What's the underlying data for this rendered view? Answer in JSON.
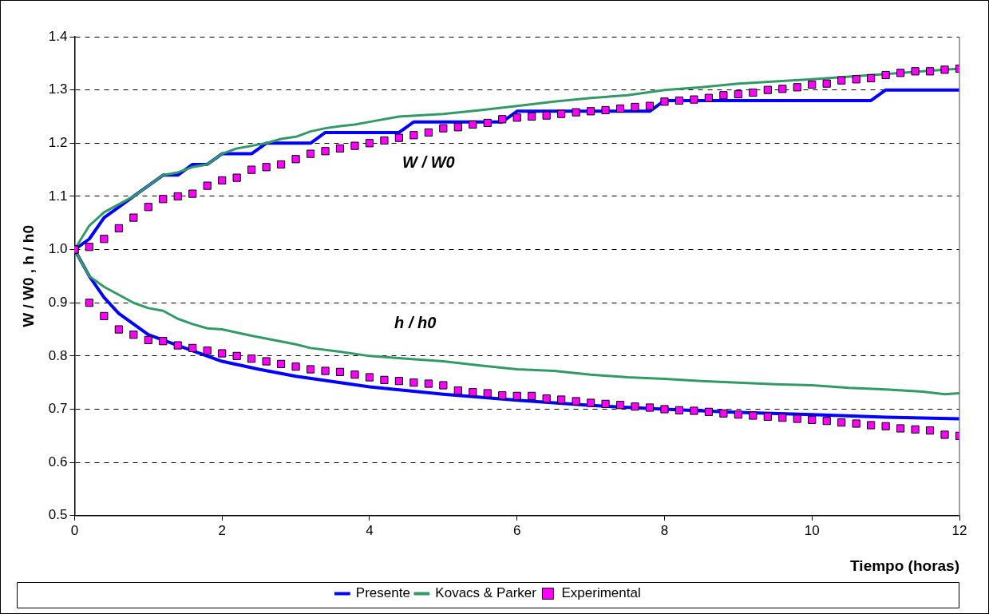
{
  "chart_data": {
    "type": "line",
    "xlabel": "Tiempo (horas)",
    "ylabel": "W / W0 , h / h0",
    "xlim": [
      0,
      12
    ],
    "xticks": [
      0,
      2,
      4,
      6,
      8,
      10,
      12
    ],
    "ylim": [
      0.5,
      1.4
    ],
    "yticks": [
      0.5,
      0.6,
      0.7,
      0.8,
      0.9,
      {
        "value": 1,
        "label": "1.0"
      },
      1.1,
      1.2,
      1.3,
      1.4
    ],
    "grid": "y",
    "legend": "bottom",
    "annotations": [
      "W / W0",
      "h / h0"
    ],
    "series": [
      {
        "name": "Presente",
        "type": "line",
        "color": "#0000ff",
        "marker": "none",
        "line_style": "solid",
        "x": [
          0,
          0.2,
          0.4,
          0.6,
          0.8,
          1.0,
          1.2,
          1.4,
          1.6,
          1.8,
          2.0,
          2.4,
          2.6,
          3.2,
          3.4,
          4.4,
          4.6,
          5.8,
          6.0,
          7.8,
          8.0,
          10.8,
          11.0,
          12.0
        ],
        "values": [
          1.0,
          1.02,
          1.06,
          1.08,
          1.1,
          1.12,
          1.14,
          1.14,
          1.16,
          1.16,
          1.18,
          1.18,
          1.2,
          1.2,
          1.22,
          1.22,
          1.24,
          1.24,
          1.26,
          1.26,
          1.28,
          1.28,
          1.3,
          1.3
        ]
      },
      {
        "type": "line",
        "color": "#0000ff",
        "marker": "none",
        "line_style": "solid",
        "x": [
          0,
          0.2,
          0.4,
          0.6,
          0.8,
          1.0,
          1.4,
          2.0,
          2.5,
          3,
          4,
          5,
          6,
          7,
          8,
          9,
          10,
          11,
          12
        ],
        "values": [
          1.0,
          0.95,
          0.91,
          0.88,
          0.86,
          0.84,
          0.82,
          0.79,
          0.775,
          0.762,
          0.742,
          0.728,
          0.717,
          0.707,
          0.7,
          0.694,
          0.69,
          0.685,
          0.682
        ]
      },
      {
        "name": "Kovacs & Parker",
        "type": "line",
        "color": "#339966",
        "marker": "none",
        "line_style": "solid",
        "x": [
          0,
          0.2,
          0.4,
          0.6,
          0.8,
          1.0,
          1.2,
          1.4,
          1.6,
          1.8,
          2.0,
          2.2,
          2.4,
          2.6,
          2.8,
          3.0,
          3.2,
          3.4,
          3.6,
          3.8,
          4.0,
          4.4,
          5,
          5.5,
          6,
          6.5,
          7,
          7.5,
          8,
          8.5,
          9,
          9.5,
          10,
          10.5,
          11,
          11.5,
          12
        ],
        "values": [
          1.0,
          1.045,
          1.07,
          1.085,
          1.1,
          1.12,
          1.14,
          1.145,
          1.155,
          1.16,
          1.18,
          1.19,
          1.195,
          1.2,
          1.208,
          1.212,
          1.222,
          1.228,
          1.232,
          1.235,
          1.24,
          1.25,
          1.255,
          1.262,
          1.27,
          1.278,
          1.285,
          1.29,
          1.3,
          1.305,
          1.312,
          1.316,
          1.32,
          1.325,
          1.33,
          1.335,
          1.34
        ]
      },
      {
        "type": "line",
        "color": "#339966",
        "marker": "none",
        "line_style": "solid",
        "x": [
          0,
          0.2,
          0.4,
          0.6,
          0.8,
          1.0,
          1.2,
          1.4,
          1.6,
          1.8,
          2.0,
          2.4,
          3.0,
          3.2,
          3.6,
          4.0,
          4.5,
          5,
          5.5,
          6,
          6.5,
          7,
          7.5,
          8,
          8.5,
          9,
          9.5,
          10,
          10.5,
          11,
          11.5,
          11.8,
          12
        ],
        "values": [
          1.0,
          0.95,
          0.93,
          0.915,
          0.9,
          0.89,
          0.885,
          0.87,
          0.86,
          0.852,
          0.85,
          0.838,
          0.822,
          0.815,
          0.808,
          0.8,
          0.795,
          0.79,
          0.782,
          0.775,
          0.772,
          0.765,
          0.76,
          0.757,
          0.753,
          0.75,
          0.747,
          0.745,
          0.74,
          0.737,
          0.733,
          0.728,
          0.73
        ]
      },
      {
        "name": "Experimental",
        "type": "scatter",
        "color": "#ff00ff",
        "marker": "square",
        "x": [
          0,
          0.2,
          0.4,
          0.6,
          0.8,
          1.0,
          1.2,
          1.4,
          1.6,
          1.8,
          2.0,
          2.2,
          2.4,
          2.6,
          2.8,
          3.0,
          3.2,
          3.4,
          3.6,
          3.8,
          4.0,
          4.2,
          4.4,
          4.6,
          4.8,
          5.0,
          5.2,
          5.4,
          5.6,
          5.8,
          6.0,
          6.2,
          6.4,
          6.6,
          6.8,
          7.0,
          7.2,
          7.4,
          7.6,
          7.8,
          8.0,
          8.2,
          8.4,
          8.6,
          8.8,
          9.0,
          9.2,
          9.4,
          9.6,
          9.8,
          10.0,
          10.2,
          10.4,
          10.6,
          10.8,
          11.0,
          11.2,
          11.4,
          11.6,
          11.8,
          12.0
        ],
        "values": [
          1.0,
          1.005,
          1.02,
          1.04,
          1.06,
          1.08,
          1.095,
          1.1,
          1.105,
          1.12,
          1.13,
          1.135,
          1.15,
          1.155,
          1.16,
          1.17,
          1.18,
          1.185,
          1.19,
          1.195,
          1.2,
          1.205,
          1.21,
          1.215,
          1.22,
          1.228,
          1.23,
          1.235,
          1.238,
          1.245,
          1.248,
          1.25,
          1.252,
          1.255,
          1.258,
          1.26,
          1.262,
          1.265,
          1.268,
          1.27,
          1.278,
          1.28,
          1.282,
          1.285,
          1.29,
          1.292,
          1.295,
          1.3,
          1.302,
          1.305,
          1.31,
          1.312,
          1.318,
          1.32,
          1.322,
          1.328,
          1.332,
          1.335,
          1.335,
          1.338,
          1.34
        ]
      },
      {
        "type": "scatter",
        "color": "#ff00ff",
        "marker": "square",
        "x": [
          0,
          0.2,
          0.4,
          0.6,
          0.8,
          1.0,
          1.2,
          1.4,
          1.6,
          1.8,
          2.0,
          2.2,
          2.4,
          2.6,
          2.8,
          3.0,
          3.2,
          3.4,
          3.6,
          3.8,
          4.0,
          4.2,
          4.4,
          4.6,
          4.8,
          5.0,
          5.2,
          5.4,
          5.6,
          5.8,
          6.0,
          6.2,
          6.4,
          6.6,
          6.8,
          7.0,
          7.2,
          7.4,
          7.6,
          7.8,
          8.0,
          8.2,
          8.4,
          8.6,
          8.8,
          9.0,
          9.2,
          9.4,
          9.6,
          9.8,
          10.0,
          10.2,
          10.4,
          10.6,
          10.8,
          11.0,
          11.2,
          11.4,
          11.6,
          11.8,
          12.0
        ],
        "values": [
          1.0,
          0.9,
          0.875,
          0.85,
          0.84,
          0.83,
          0.828,
          0.82,
          0.815,
          0.81,
          0.805,
          0.8,
          0.795,
          0.79,
          0.785,
          0.78,
          0.775,
          0.772,
          0.77,
          0.765,
          0.76,
          0.755,
          0.753,
          0.75,
          0.748,
          0.745,
          0.735,
          0.732,
          0.73,
          0.726,
          0.725,
          0.725,
          0.72,
          0.718,
          0.715,
          0.712,
          0.71,
          0.708,
          0.705,
          0.703,
          0.7,
          0.698,
          0.697,
          0.695,
          0.692,
          0.69,
          0.688,
          0.686,
          0.684,
          0.682,
          0.68,
          0.678,
          0.675,
          0.673,
          0.67,
          0.668,
          0.664,
          0.662,
          0.66,
          0.652,
          0.65
        ]
      }
    ]
  }
}
